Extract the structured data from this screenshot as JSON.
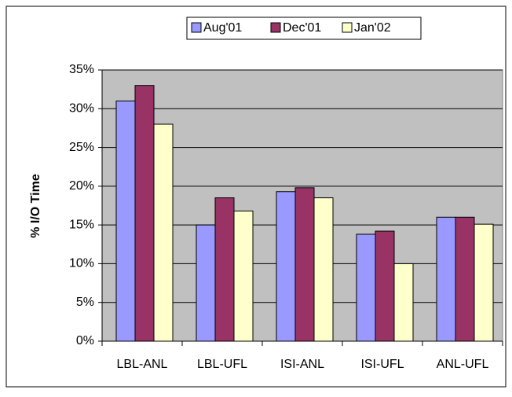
{
  "chart_data": {
    "type": "bar",
    "ylabel": "% I/O Time",
    "categories": [
      "LBL-ANL",
      "LBL-UFL",
      "ISI-ANL",
      "ISI-UFL",
      "ANL-UFL"
    ],
    "series": [
      {
        "name": "Aug'01",
        "color": "#9999ff",
        "values": [
          31,
          15,
          19.3,
          13.8,
          16
        ]
      },
      {
        "name": "Dec'01",
        "color": "#993366",
        "values": [
          33,
          18.5,
          19.8,
          14.2,
          16
        ]
      },
      {
        "name": "Jan'02",
        "color": "#ffffcc",
        "values": [
          28,
          16.8,
          18.5,
          10,
          15.1
        ]
      }
    ],
    "ylim": [
      0,
      35
    ],
    "yticks": [
      {
        "value": 0,
        "label": "0%"
      },
      {
        "value": 5,
        "label": "5%"
      },
      {
        "value": 10,
        "label": "10%"
      },
      {
        "value": 15,
        "label": "15%"
      },
      {
        "value": 20,
        "label": "20%"
      },
      {
        "value": 25,
        "label": "25%"
      },
      {
        "value": 30,
        "label": "30%"
      },
      {
        "value": 35,
        "label": "35%"
      }
    ],
    "grid": true,
    "plot_background": "#c0c0c0",
    "legend": "top"
  }
}
